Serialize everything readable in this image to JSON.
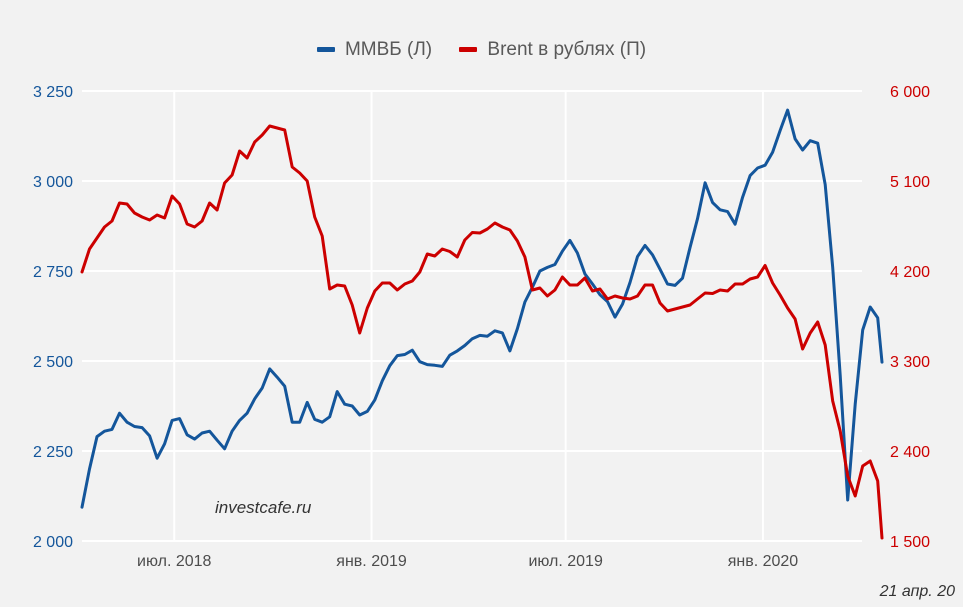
{
  "colors": {
    "background": "#f2f2f2",
    "grid": "#ffffff",
    "mmvb": "#14569b",
    "brent": "#cc0000",
    "xtick": "#4d4d4d"
  },
  "legend": {
    "items": [
      {
        "label": "ММВБ (Л)",
        "color": "#14569b"
      },
      {
        "label": "Brent в рублях (П)",
        "color": "#cc0000"
      }
    ],
    "position": "top-center"
  },
  "watermark": "investcafe.ru",
  "date_stamp": "21 апр. 20",
  "chart_data": {
    "type": "line",
    "title": "",
    "xlabel": "",
    "ylabel_left": "",
    "ylabel_right": "",
    "grid": true,
    "x_start_date": "2018-04-06",
    "x_step_days": 7,
    "x_range": [
      "2018-04-06",
      "2020-04-21"
    ],
    "x_ticks": [
      {
        "date": "2018-07-01",
        "label": "июл. 2018"
      },
      {
        "date": "2019-01-01",
        "label": "янв. 2019"
      },
      {
        "date": "2019-07-01",
        "label": "июл. 2019"
      },
      {
        "date": "2020-01-01",
        "label": "янв. 2020"
      }
    ],
    "y_left": {
      "range": [
        2000,
        3250
      ],
      "ticks": [
        {
          "value": 3250,
          "label": "3 250"
        },
        {
          "value": 3000,
          "label": "3 000"
        },
        {
          "value": 2750,
          "label": "2 750"
        },
        {
          "value": 2500,
          "label": "2 500"
        },
        {
          "value": 2250,
          "label": "2 250"
        },
        {
          "value": 2000,
          "label": "2 000"
        }
      ]
    },
    "y_right": {
      "range": [
        1500,
        6000
      ],
      "ticks": [
        {
          "value": 6000,
          "label": "6 000"
        },
        {
          "value": 5100,
          "label": "5 100"
        },
        {
          "value": 4200,
          "label": "4 200"
        },
        {
          "value": 3300,
          "label": "3 300"
        },
        {
          "value": 2400,
          "label": "2 400"
        },
        {
          "value": 1500,
          "label": "1 500"
        }
      ]
    },
    "series": [
      {
        "name": "ММВБ (Л)",
        "axis": "left",
        "values": [
          2094,
          2200,
          2290,
          2305,
          2310,
          2355,
          2330,
          2318,
          2315,
          2292,
          2230,
          2270,
          2335,
          2340,
          2295,
          2283,
          2300,
          2305,
          2280,
          2256,
          2305,
          2335,
          2355,
          2395,
          2425,
          2478,
          2455,
          2430,
          2330,
          2330,
          2385,
          2338,
          2330,
          2345,
          2415,
          2380,
          2375,
          2350,
          2360,
          2392,
          2445,
          2487,
          2515,
          2518,
          2530,
          2498,
          2490,
          2488,
          2485,
          2516,
          2528,
          2543,
          2562,
          2571,
          2569,
          2584,
          2578,
          2528,
          2590,
          2664,
          2705,
          2750,
          2760,
          2768,
          2805,
          2835,
          2800,
          2742,
          2714,
          2684,
          2665,
          2622,
          2658,
          2718,
          2790,
          2821,
          2795,
          2755,
          2714,
          2710,
          2730,
          2815,
          2895,
          2995,
          2940,
          2920,
          2915,
          2880,
          2955,
          3015,
          3036,
          3044,
          3080,
          3140,
          3197,
          3117,
          3086,
          3112,
          3105,
          2990,
          2760,
          2460,
          2114,
          2380,
          2586,
          2650,
          2620,
          2497
        ]
      },
      {
        "name": "Brent в рублях (П)",
        "axis": "right",
        "values": [
          4190,
          4420,
          4530,
          4640,
          4700,
          4880,
          4870,
          4780,
          4740,
          4710,
          4760,
          4730,
          4950,
          4870,
          4670,
          4640,
          4700,
          4880,
          4810,
          5080,
          5160,
          5400,
          5330,
          5490,
          5560,
          5650,
          5630,
          5610,
          5240,
          5180,
          5100,
          4740,
          4550,
          4020,
          4060,
          4050,
          3860,
          3580,
          3830,
          4000,
          4080,
          4080,
          4010,
          4070,
          4100,
          4190,
          4370,
          4350,
          4420,
          4395,
          4340,
          4510,
          4585,
          4580,
          4620,
          4680,
          4640,
          4610,
          4500,
          4340,
          4010,
          4030,
          3950,
          4010,
          4140,
          4060,
          4060,
          4130,
          4000,
          4020,
          3920,
          3950,
          3930,
          3920,
          3950,
          4060,
          4060,
          3880,
          3800,
          3820,
          3840,
          3860,
          3920,
          3980,
          3975,
          4010,
          4000,
          4070,
          4070,
          4120,
          4140,
          4255,
          4080,
          3960,
          3830,
          3720,
          3420,
          3580,
          3690,
          3460,
          2900,
          2600,
          2150,
          1950,
          2250,
          2300,
          2100,
          1530
        ]
      }
    ]
  }
}
